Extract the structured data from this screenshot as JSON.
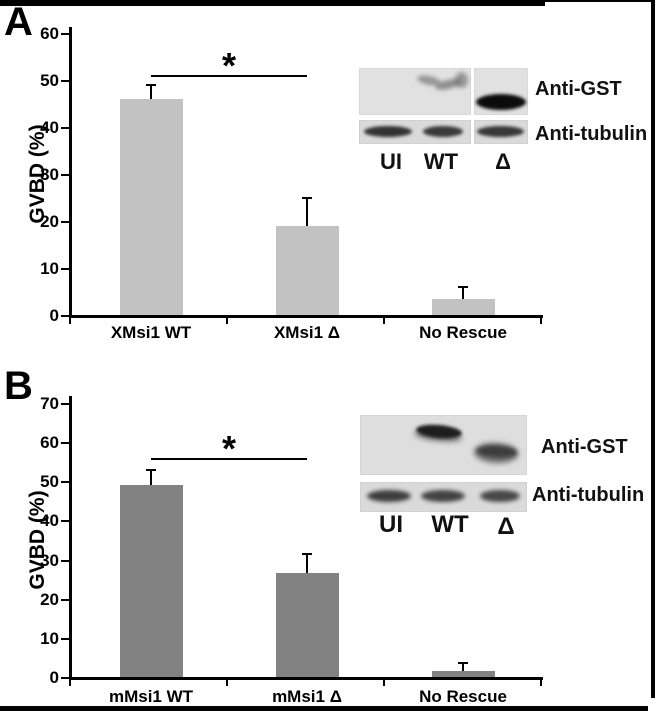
{
  "chart_data": [
    {
      "type": "bar",
      "panel": "A",
      "panel_label": "A",
      "ylabel": "GVBD (%)",
      "xlabel": "",
      "ylim": [
        0,
        60
      ],
      "yticks": [
        0,
        10,
        20,
        30,
        40,
        50,
        60
      ],
      "grid": false,
      "legend": "none",
      "categories": [
        "XMsi1 WT",
        "XMsi1 Δ",
        "No  Rescue"
      ],
      "values": [
        46,
        19,
        3.5
      ],
      "errors": [
        3,
        6,
        2.5
      ],
      "bar_color": "#c2c2c2",
      "significance": {
        "label": "*",
        "from": 0,
        "to": 1,
        "line_y": 51,
        "between": [
          "XMsi1 WT",
          "XMsi1 Δ"
        ]
      },
      "inset_blot": {
        "lanes": [
          "UI",
          "WT",
          "Δ"
        ],
        "antibodies": [
          "Anti-GST",
          "Anti-tubulin"
        ],
        "bands": {
          "Anti-GST": {
            "UI": "none",
            "WT": "faint band",
            "Δ": "strong dark band"
          },
          "Anti-tubulin": {
            "UI": "band",
            "WT": "band",
            "Δ": "band"
          }
        }
      }
    },
    {
      "type": "bar",
      "panel": "B",
      "panel_label": "B",
      "ylabel": "GVBD (%)",
      "xlabel": "",
      "ylim": [
        0,
        70
      ],
      "yticks": [
        0,
        10,
        20,
        30,
        40,
        50,
        60,
        70
      ],
      "grid": false,
      "legend": "none",
      "categories": [
        "mMsi1 WT",
        "mMsi1 Δ",
        "No Rescue"
      ],
      "values": [
        49,
        26.5,
        1.5
      ],
      "errors": [
        4,
        5,
        2
      ],
      "bar_color": "#828282",
      "significance": {
        "label": "*",
        "from": 0,
        "to": 1,
        "line_y": 56,
        "between": [
          "mMsi1 WT",
          "mMsi1 Δ"
        ]
      },
      "inset_blot": {
        "lanes": [
          "UI",
          "WT",
          "Δ"
        ],
        "antibodies": [
          "Anti-GST",
          "Anti-tubulin"
        ],
        "bands": {
          "Anti-GST": {
            "UI": "none",
            "WT": "strong dark band",
            "Δ": "medium band lower"
          },
          "Anti-tubulin": {
            "UI": "band",
            "WT": "band",
            "Δ": "band"
          }
        }
      }
    }
  ],
  "colors": {
    "panel_a_bar": "#c2c2c2",
    "panel_b_bar": "#828282",
    "axis": "#000000",
    "blot_background": "#e0e0e0"
  }
}
